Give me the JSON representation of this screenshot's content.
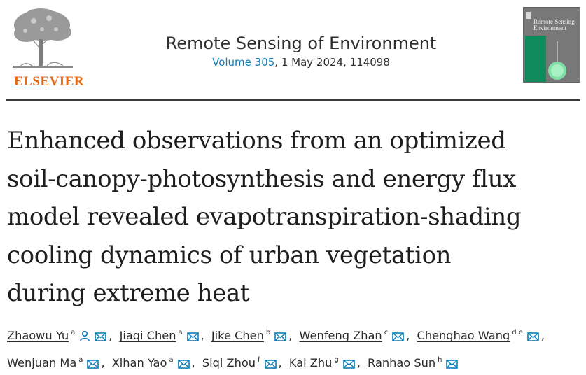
{
  "publisher": {
    "name": "ELSEVIER"
  },
  "journal": {
    "name": "Remote Sensing of Environment",
    "volume_link": "Volume 305",
    "issue_rest": ", 1 May 2024, 114098",
    "cover_title": "Remote Sensing Environment"
  },
  "article": {
    "title_lines": [
      "Enhanced observations from an optimized",
      "soil-canopy-photosynthesis and energy flux",
      "model revealed evapotranspiration-shading",
      "cooling dynamics of urban vegetation",
      "during extreme heat"
    ]
  },
  "authors": [
    {
      "name": "Zhaowu Yu",
      "aff": "a",
      "sep": ","
    },
    {
      "name": "Jiaqi Chen",
      "aff": "a",
      "sep": ","
    },
    {
      "name": "Jike Chen",
      "aff": "b",
      "sep": ","
    },
    {
      "name": "Wenfeng Zhan",
      "aff": "c",
      "sep": ","
    },
    {
      "name": "Chenghao Wang",
      "aff": "d e",
      "sep": ","
    },
    {
      "name": "Wenjuan Ma",
      "aff": "a",
      "sep": ","
    },
    {
      "name": "Xihan Yao",
      "aff": "a",
      "sep": ","
    },
    {
      "name": "Siqi Zhou",
      "aff": "f",
      "sep": ","
    },
    {
      "name": "Kai Zhu",
      "aff": "g",
      "sep": ","
    },
    {
      "name": "Ranhao Sun",
      "aff": "h",
      "sep": ""
    }
  ],
  "icons": {
    "corresponding": "person-icon",
    "email": "envelope-icon"
  },
  "colors": {
    "publisher_orange": "#e86a10",
    "link_blue": "#0c7dbb",
    "icon_blue": "#0c7dbb"
  }
}
